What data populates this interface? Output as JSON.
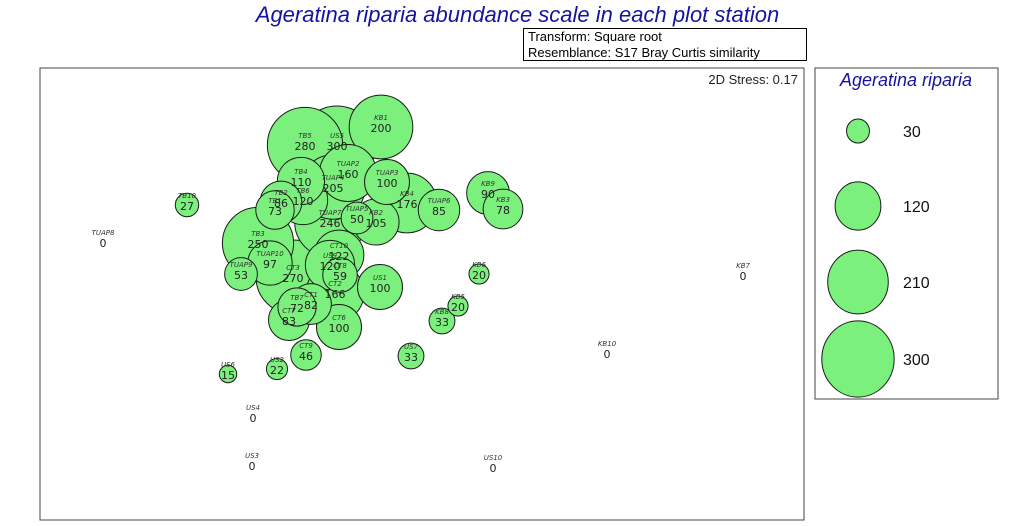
{
  "title": "Ageratina riparia abundance scale in each plot station",
  "transform_box": {
    "line1": "Transform: Square root",
    "line2": "Resemblance: S17 Bray Curtis similarity"
  },
  "stress_label": "2D Stress: 0.17",
  "colors": {
    "bubble_fill": "#7cf07c",
    "title": "#1414a0"
  },
  "chart_data": {
    "type": "scatter",
    "subtype": "bubble-mds",
    "title": "Ageratina riparia abundance scale in each plot station",
    "bubble_variable": "Ageratina riparia",
    "legend": {
      "title": "Ageratina riparia",
      "placement": "right",
      "values": [
        30,
        120,
        210,
        300
      ]
    },
    "points": [
      {
        "station": "TB5",
        "value": 280
      },
      {
        "station": "US5",
        "value": 300
      },
      {
        "station": "KB1",
        "value": 200
      },
      {
        "station": "TUAP2",
        "value": 160
      },
      {
        "station": "TB4",
        "value": 110
      },
      {
        "station": "TUAP4",
        "value": 205
      },
      {
        "station": "TUAP3",
        "value": 100
      },
      {
        "station": "TB2",
        "value": 86
      },
      {
        "station": "TB6",
        "value": 120
      },
      {
        "station": "KB4",
        "value": 176
      },
      {
        "station": "KB9",
        "value": 90
      },
      {
        "station": "KB3",
        "value": 78
      },
      {
        "station": "TUAP6",
        "value": 85
      },
      {
        "station": "TB10",
        "value": 27
      },
      {
        "station": "TB1",
        "value": 73
      },
      {
        "station": "KB2",
        "value": 105
      },
      {
        "station": "TUAP5",
        "value": 50
      },
      {
        "station": "TUAP7",
        "value": 246
      },
      {
        "station": "TUAP8",
        "value": 0
      },
      {
        "station": "TB3",
        "value": 250
      },
      {
        "station": "TUAP10",
        "value": 97
      },
      {
        "station": "TUAP9",
        "value": 53
      },
      {
        "station": "CT10",
        "value": 122
      },
      {
        "station": "US9",
        "value": 120
      },
      {
        "station": "CT8",
        "value": 59
      },
      {
        "station": "CT3",
        "value": 270
      },
      {
        "station": "US1",
        "value": 100
      },
      {
        "station": "CT2",
        "value": 166
      },
      {
        "station": "TB7",
        "value": 72
      },
      {
        "station": "CT1",
        "value": 82
      },
      {
        "station": "CT7",
        "value": 83
      },
      {
        "station": "CT6",
        "value": 100
      },
      {
        "station": "KB6",
        "value": 20
      },
      {
        "station": "KB5",
        "value": 20
      },
      {
        "station": "KB8",
        "value": 33
      },
      {
        "station": "KB7",
        "value": 0
      },
      {
        "station": "KB10",
        "value": 0
      },
      {
        "station": "CT9",
        "value": 46
      },
      {
        "station": "US7",
        "value": 33
      },
      {
        "station": "US6",
        "value": 15
      },
      {
        "station": "US2",
        "value": 22
      },
      {
        "station": "US4",
        "value": 0
      },
      {
        "station": "US3",
        "value": 0
      },
      {
        "station": "US10",
        "value": 0
      }
    ]
  }
}
